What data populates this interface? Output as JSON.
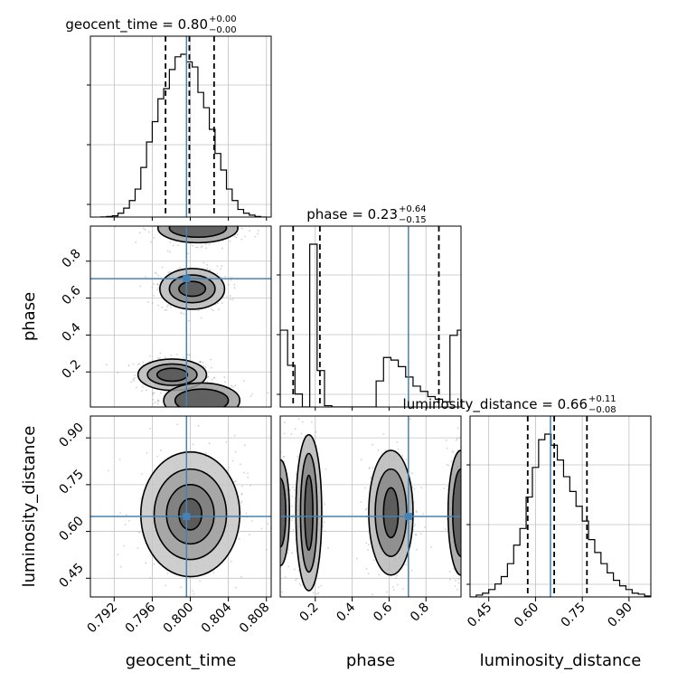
{
  "chart_data": {
    "type": "corner",
    "parameters": [
      "geocent_time",
      "phase",
      "luminosity_distance"
    ],
    "truths": {
      "geocent_time": 0.7996,
      "phase": 0.705,
      "luminosity_distance": 0.648
    },
    "titles": [
      {
        "name": "geocent_time",
        "value": "0.80",
        "upper": "+0.00",
        "lower": "−0.00"
      },
      {
        "name": "phase",
        "value": "0.23",
        "upper": "+0.64",
        "lower": "−0.15"
      },
      {
        "name": "luminosity_distance",
        "value": "0.66",
        "upper": "+0.11",
        "lower": "−0.08"
      }
    ],
    "axes": {
      "geocent_time": {
        "range": [
          0.7895,
          0.8085
        ],
        "ticks": [
          0.792,
          0.796,
          0.8,
          0.804,
          0.808
        ],
        "tick_labels": [
          "0.792",
          "0.796",
          "0.800",
          "0.804",
          "0.808"
        ]
      },
      "phase": {
        "range": [
          0.01,
          0.99
        ],
        "ticks": [
          0.2,
          0.4,
          0.6,
          0.8
        ],
        "tick_labels": [
          "0.2",
          "0.4",
          "0.6",
          "0.8"
        ]
      },
      "luminosity_distance": {
        "range": [
          0.39,
          0.97
        ],
        "ticks": [
          0.45,
          0.6,
          0.75,
          0.9
        ],
        "tick_labels": [
          "0.45",
          "0.60",
          "0.75",
          "0.90"
        ]
      }
    },
    "histograms": {
      "geocent_time": {
        "quantiles": [
          0.7974,
          0.7999,
          0.8025
        ],
        "edges": [
          0.7906,
          0.7912,
          0.7918,
          0.7924,
          0.793,
          0.7936,
          0.7942,
          0.7948,
          0.7954,
          0.796,
          0.7966,
          0.7972,
          0.7978,
          0.7984,
          0.799,
          0.7996,
          0.8002,
          0.8008,
          0.8014,
          0.802,
          0.8026,
          0.8032,
          0.8038,
          0.8044,
          0.805,
          0.8056,
          0.8062,
          0.8068,
          0.8074,
          0.808
        ],
        "counts": [
          0.2,
          1,
          2,
          6,
          14,
          26,
          44,
          78,
          118,
          150,
          186,
          202,
          232,
          252,
          256,
          244,
          236,
          196,
          172,
          138,
          100,
          74,
          44,
          26,
          12,
          6,
          3,
          1,
          0
        ]
      },
      "phase": {
        "quantiles": [
          0.08,
          0.225,
          0.87
        ],
        "edges": [
          0.01,
          0.05,
          0.09,
          0.13,
          0.17,
          0.21,
          0.25,
          0.29,
          0.33,
          0.37,
          0.41,
          0.45,
          0.49,
          0.53,
          0.57,
          0.61,
          0.65,
          0.69,
          0.73,
          0.77,
          0.81,
          0.85,
          0.89,
          0.93,
          0.97,
          0.99
        ],
        "counts": [
          118,
          64,
          20,
          0,
          250,
          56,
          2,
          0,
          0,
          0,
          0,
          0,
          0,
          40,
          76,
          72,
          62,
          46,
          32,
          24,
          16,
          12,
          8,
          110,
          118
        ]
      },
      "luminosity_distance": {
        "quantiles": [
          0.575,
          0.66,
          0.765
        ],
        "edges": [
          0.39,
          0.41,
          0.43,
          0.45,
          0.47,
          0.49,
          0.51,
          0.53,
          0.55,
          0.57,
          0.59,
          0.61,
          0.63,
          0.65,
          0.67,
          0.69,
          0.71,
          0.73,
          0.75,
          0.77,
          0.79,
          0.81,
          0.83,
          0.85,
          0.87,
          0.89,
          0.91,
          0.93,
          0.95,
          0.97
        ],
        "counts": [
          0,
          2,
          4,
          8,
          14,
          22,
          36,
          56,
          74,
          108,
          140,
          170,
          176,
          164,
          148,
          130,
          114,
          98,
          82,
          62,
          48,
          36,
          26,
          18,
          12,
          8,
          4,
          3,
          1
        ]
      }
    },
    "contours": {
      "phase_vs_geocent_time": [
        {
          "cx": 0.7981,
          "cy": 0.185,
          "rings": [
            [
              0.0036,
              0.085
            ],
            [
              0.0026,
              0.058
            ],
            [
              0.0016,
              0.035
            ]
          ]
        },
        {
          "cx": 0.8012,
          "cy": 0.045,
          "rings": [
            [
              0.004,
              0.095
            ],
            [
              0.0028,
              0.062
            ]
          ]
        },
        {
          "cx": 0.8002,
          "cy": 0.65,
          "rings": [
            [
              0.0034,
              0.11
            ],
            [
              0.0024,
              0.075
            ],
            [
              0.0014,
              0.04
            ]
          ]
        },
        {
          "cx": 0.8008,
          "cy": 0.98,
          "rings": [
            [
              0.0042,
              0.08
            ],
            [
              0.003,
              0.05
            ]
          ]
        }
      ],
      "luminosity_distance_vs_geocent_time": [
        {
          "cx": 0.8,
          "cy": 0.655,
          "rings": [
            [
              0.0052,
              0.2
            ],
            [
              0.0038,
              0.145
            ],
            [
              0.0025,
              0.095
            ],
            [
              0.0012,
              0.05
            ]
          ]
        }
      ],
      "luminosity_distance_vs_phase": [
        {
          "cx": 0.165,
          "cy": 0.66,
          "rings": [
            [
              0.07,
              0.25
            ],
            [
              0.045,
              0.19
            ],
            [
              0.022,
              0.12
            ]
          ]
        },
        {
          "cx": 0.61,
          "cy": 0.66,
          "rings": [
            [
              0.12,
              0.2
            ],
            [
              0.085,
              0.14
            ],
            [
              0.04,
              0.08
            ]
          ]
        },
        {
          "cx": 0.99,
          "cy": 0.66,
          "rings": [
            [
              0.07,
              0.2
            ],
            [
              0.045,
              0.14
            ]
          ]
        },
        {
          "cx": 0.01,
          "cy": 0.66,
          "rings": [
            [
              0.05,
              0.17
            ],
            [
              0.03,
              0.11
            ]
          ]
        }
      ]
    },
    "colors": {
      "truth": "#4682b4",
      "hist": "#000000",
      "contour": "#000000",
      "grid": "#c0c0c0",
      "points": "#999999"
    }
  }
}
